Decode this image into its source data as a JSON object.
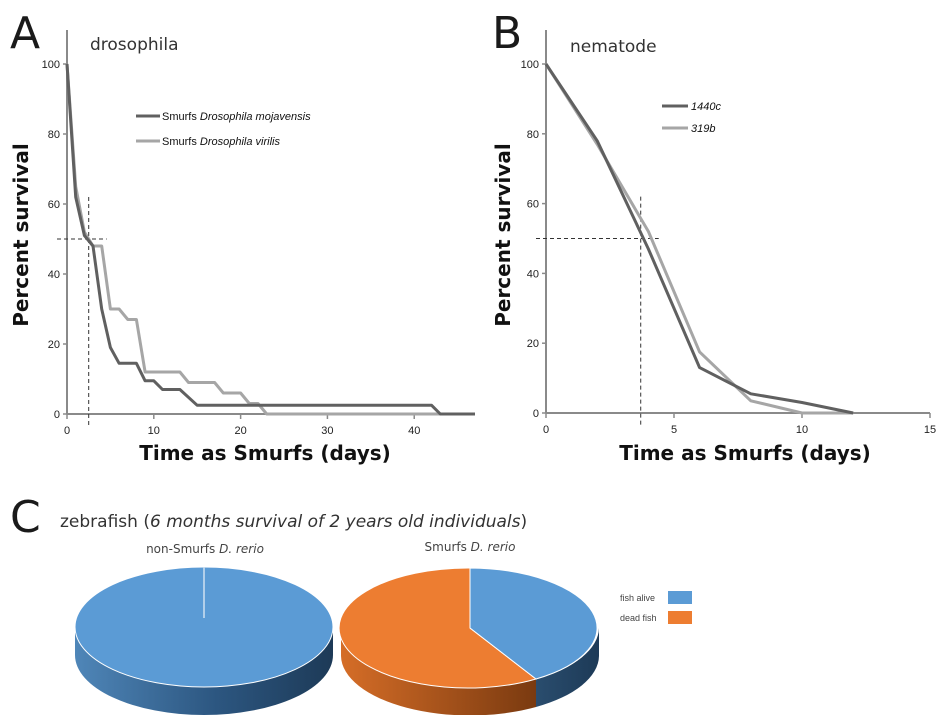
{
  "panels": {
    "a": {
      "letter": "A",
      "title": "drosophila"
    },
    "b": {
      "letter": "B",
      "title": "nematode"
    },
    "c": {
      "letter": "C",
      "title_main": "zebrafish (",
      "title_italic": "6 months survival of 2 years old individuals",
      "title_close": ")"
    }
  },
  "chart_data": [
    {
      "id": "A",
      "type": "line",
      "title": "drosophila",
      "xlabel": "Time as Smurfs (days)",
      "ylabel": "Percent survival",
      "xlim": [
        0,
        47
      ],
      "ylim": [
        0,
        100
      ],
      "xticks": [
        "0",
        "10",
        "20",
        "30",
        "40"
      ],
      "yticks": [
        "0",
        "20",
        "40",
        "60",
        "80",
        "100"
      ],
      "legend_position": "top-right",
      "reference": {
        "y": 50,
        "x": 2.5
      },
      "series": [
        {
          "name_plain": "Smurfs ",
          "name_italic": "Drosophila mojavensis",
          "color": "#606060",
          "x": [
            0,
            1,
            2,
            3,
            4,
            5,
            6,
            8,
            9,
            10,
            11,
            13,
            15,
            16,
            18,
            20,
            21,
            22,
            30,
            42,
            43,
            47
          ],
          "y": [
            100,
            62,
            51,
            48,
            30,
            19,
            14.5,
            14.5,
            9.5,
            9.5,
            7,
            7,
            2.5,
            2.5,
            2.5,
            2.5,
            2.5,
            2.5,
            2.5,
            2.5,
            0,
            0
          ]
        },
        {
          "name_plain": "Smurfs ",
          "name_italic": "Drosophila virilis",
          "color": "#a6a6a6",
          "x": [
            0,
            1,
            2,
            3,
            4,
            5,
            6,
            7,
            8,
            9,
            10,
            13,
            14,
            17,
            18,
            20,
            21,
            22,
            23,
            47
          ],
          "y": [
            100,
            65,
            52,
            48,
            48,
            30,
            30,
            27,
            27,
            12,
            12,
            12,
            9,
            9,
            6,
            6,
            3,
            3,
            0,
            0
          ]
        }
      ]
    },
    {
      "id": "B",
      "type": "line",
      "title": "nematode",
      "xlabel": "Time as Smurfs (days)",
      "ylabel": "Percent survival",
      "xlim": [
        0,
        15
      ],
      "ylim": [
        0,
        100
      ],
      "xticks": [
        "0",
        "5",
        "10",
        "15"
      ],
      "yticks": [
        "0",
        "20",
        "40",
        "60",
        "80",
        "100"
      ],
      "legend_position": "top-right",
      "reference": {
        "y": 50,
        "x": 3.7
      },
      "series": [
        {
          "name_plain": "",
          "name_italic": "1440c",
          "color": "#606060",
          "x": [
            0,
            2,
            4,
            6,
            8,
            10,
            12
          ],
          "y": [
            100,
            78,
            47,
            13,
            5.5,
            3,
            0
          ]
        },
        {
          "name_plain": "",
          "name_italic": "319b",
          "color": "#a6a6a6",
          "x": [
            0,
            2,
            4,
            6,
            8,
            10,
            12
          ],
          "y": [
            100,
            77,
            52,
            17.5,
            3.5,
            0,
            0
          ]
        }
      ]
    },
    {
      "id": "C1",
      "type": "pie",
      "title_plain": "non-Smurfs ",
      "title_italic": "D. rerio",
      "labels": [
        "fish alive",
        "dead fish"
      ],
      "values": [
        100,
        0
      ],
      "colors": [
        "#5b9bd5",
        "#ed7d31"
      ]
    },
    {
      "id": "C2",
      "type": "pie",
      "title_plain": "Smurfs ",
      "title_italic": "D. rerio",
      "labels": [
        "fish alive",
        "dead fish"
      ],
      "values": [
        42,
        58
      ],
      "colors": [
        "#5b9bd5",
        "#ed7d31"
      ]
    }
  ],
  "pie_legend": {
    "items": [
      {
        "label": "fish alive",
        "color": "#5b9bd5"
      },
      {
        "label": "dead fish",
        "color": "#ed7d31"
      }
    ]
  }
}
